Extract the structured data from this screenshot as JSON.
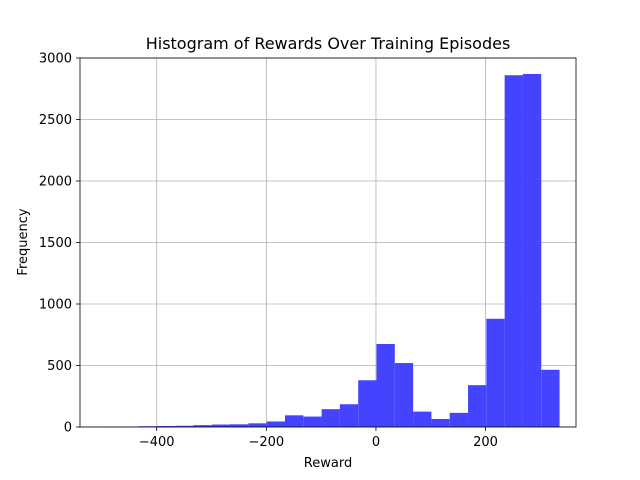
{
  "chart_data": {
    "type": "bar",
    "title": "Histogram of Rewards Over Training Episodes",
    "xlabel": "Reward",
    "ylabel": "Frequency",
    "xlim": [
      -540,
      365
    ],
    "ylim": [
      0,
      3000
    ],
    "xticks": [
      -400,
      -200,
      0,
      200
    ],
    "xtick_labels": [
      "−400",
      "−200",
      "0",
      "200"
    ],
    "yticks": [
      0,
      500,
      1000,
      1500,
      2000,
      2500,
      3000
    ],
    "ytick_labels": [
      "0",
      "500",
      "1000",
      "1500",
      "2000",
      "2500",
      "3000"
    ],
    "grid": true,
    "bar_color": "#4040ff",
    "bins": [
      {
        "x0": -500,
        "x1": -466.6,
        "count": 2
      },
      {
        "x0": -466.6,
        "x1": -433.2,
        "count": 3
      },
      {
        "x0": -433.2,
        "x1": -399.8,
        "count": 6
      },
      {
        "x0": -399.8,
        "x1": -366.4,
        "count": 8
      },
      {
        "x0": -366.4,
        "x1": -333.0,
        "count": 10
      },
      {
        "x0": -333.0,
        "x1": -299.6,
        "count": 15
      },
      {
        "x0": -299.6,
        "x1": -266.2,
        "count": 20
      },
      {
        "x0": -266.2,
        "x1": -232.8,
        "count": 22
      },
      {
        "x0": -232.8,
        "x1": -199.4,
        "count": 30
      },
      {
        "x0": -199.4,
        "x1": -166.0,
        "count": 45
      },
      {
        "x0": -166.0,
        "x1": -132.6,
        "count": 95
      },
      {
        "x0": -132.6,
        "x1": -99.2,
        "count": 85
      },
      {
        "x0": -99.2,
        "x1": -65.8,
        "count": 145
      },
      {
        "x0": -65.8,
        "x1": -32.4,
        "count": 185
      },
      {
        "x0": -32.4,
        "x1": 1.0,
        "count": 380
      },
      {
        "x0": 1.0,
        "x1": 34.4,
        "count": 675
      },
      {
        "x0": 34.4,
        "x1": 67.8,
        "count": 520
      },
      {
        "x0": 67.8,
        "x1": 101.2,
        "count": 125
      },
      {
        "x0": 101.2,
        "x1": 134.6,
        "count": 65
      },
      {
        "x0": 134.6,
        "x1": 168.0,
        "count": 115
      },
      {
        "x0": 168.0,
        "x1": 201.4,
        "count": 340
      },
      {
        "x0": 201.4,
        "x1": 234.8,
        "count": 880
      },
      {
        "x0": 234.8,
        "x1": 268.2,
        "count": 2860
      },
      {
        "x0": 268.2,
        "x1": 301.6,
        "count": 2870
      },
      {
        "x0": 301.6,
        "x1": 335.0,
        "count": 465
      }
    ]
  }
}
